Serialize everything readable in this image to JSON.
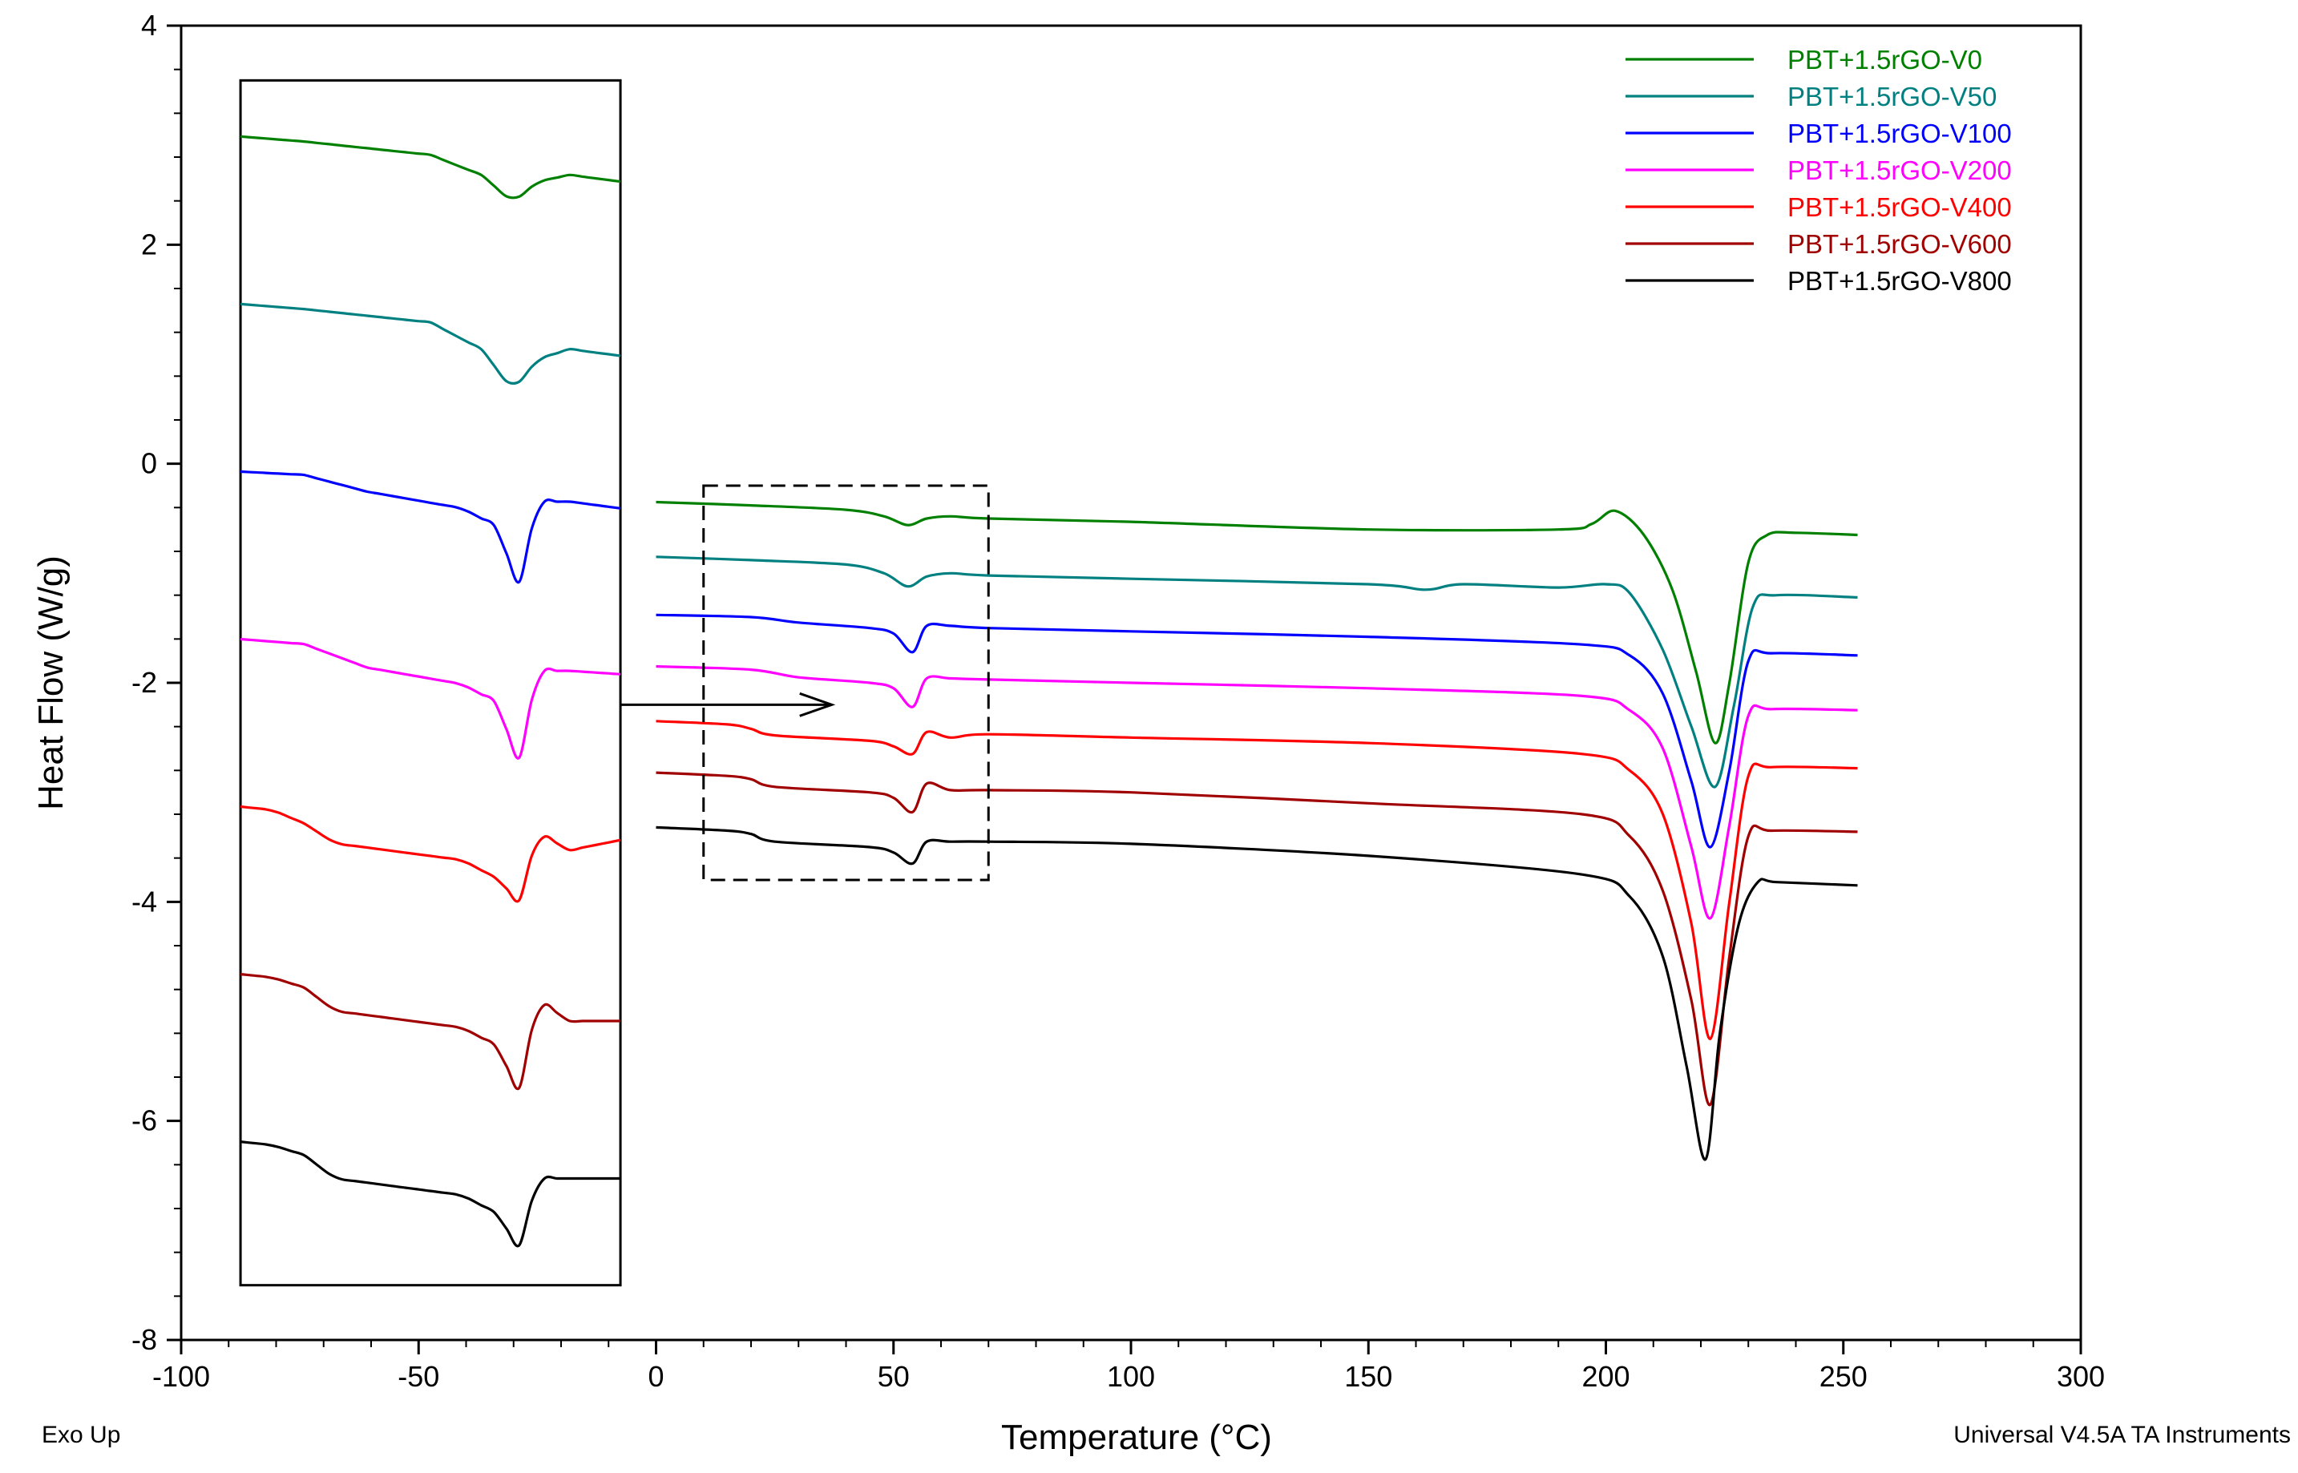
{
  "chart_data": {
    "type": "line",
    "title": "",
    "xlabel": "Temperature (°C)",
    "ylabel": "Heat Flow (W/g)",
    "xlim": [
      -100,
      300
    ],
    "ylim": [
      -8,
      4
    ],
    "xticks": [
      -100,
      -50,
      0,
      50,
      100,
      150,
      200,
      250,
      300
    ],
    "xtick_labels": [
      "-100",
      "-50",
      "0",
      "50",
      "100",
      "150",
      "200",
      "250",
      "300"
    ],
    "yticks": [
      4,
      2,
      0,
      -2,
      -4,
      -6,
      -8
    ],
    "ytick_labels": [
      "4",
      "2",
      "0",
      "-2",
      "-4",
      "-6",
      "-8"
    ],
    "legend_position": "top-right",
    "footer_left": "Exo Up",
    "footer_right": "Universal V4.5A TA Instruments",
    "zoom_box": {
      "x": [
        10,
        70
      ],
      "y": [
        -3.8,
        -0.2
      ]
    },
    "inset": {
      "description_x": [
        -87.5,
        -7.5
      ],
      "y": [
        -7.5,
        3.5
      ],
      "source_x": [
        10,
        70
      ]
    },
    "series": [
      {
        "name": "PBT+1.5rGO-V0",
        "color": "#008000",
        "x": [
          0,
          20,
          40,
          48,
          53,
          57,
          62,
          70,
          100,
          150,
          190,
          197,
          202,
          208,
          214,
          219,
          223,
          226,
          230,
          234,
          240,
          253
        ],
        "y": [
          -0.35,
          -0.38,
          -0.42,
          -0.48,
          -0.56,
          -0.5,
          -0.48,
          -0.5,
          -0.53,
          -0.6,
          -0.6,
          -0.55,
          -0.43,
          -0.65,
          -1.15,
          -1.9,
          -2.55,
          -2.0,
          -0.9,
          -0.65,
          -0.63,
          -0.65
        ]
      },
      {
        "name": "PBT+1.5rGO-V50",
        "color": "#008080",
        "x": [
          0,
          20,
          40,
          48,
          53,
          57,
          62,
          70,
          100,
          150,
          162,
          170,
          190,
          200,
          205,
          212,
          218,
          223,
          227,
          231,
          236,
          253
        ],
        "y": [
          -0.85,
          -0.88,
          -0.92,
          -1.0,
          -1.12,
          -1.03,
          -1.0,
          -1.02,
          -1.05,
          -1.1,
          -1.15,
          -1.1,
          -1.13,
          -1.1,
          -1.18,
          -1.7,
          -2.4,
          -2.95,
          -2.2,
          -1.3,
          -1.2,
          -1.22
        ]
      },
      {
        "name": "PBT+1.5rGO-V100",
        "color": "#0000FF",
        "x": [
          0,
          20,
          30,
          45,
          50,
          54,
          57,
          62,
          70,
          100,
          150,
          195,
          205,
          212,
          218,
          222,
          226,
          230,
          235,
          253
        ],
        "y": [
          -1.38,
          -1.4,
          -1.45,
          -1.5,
          -1.55,
          -1.72,
          -1.48,
          -1.48,
          -1.5,
          -1.53,
          -1.58,
          -1.65,
          -1.75,
          -2.1,
          -2.9,
          -3.5,
          -2.8,
          -1.8,
          -1.73,
          -1.75
        ]
      },
      {
        "name": "PBT+1.5rGO-V200",
        "color": "#FF00FF",
        "x": [
          0,
          20,
          30,
          45,
          50,
          54,
          57,
          62,
          70,
          100,
          150,
          195,
          205,
          212,
          218,
          222,
          226,
          230,
          235,
          253
        ],
        "y": [
          -1.85,
          -1.88,
          -1.95,
          -2.0,
          -2.05,
          -2.22,
          -1.96,
          -1.96,
          -1.97,
          -2.0,
          -2.05,
          -2.12,
          -2.25,
          -2.6,
          -3.5,
          -4.15,
          -3.3,
          -2.3,
          -2.24,
          -2.25
        ]
      },
      {
        "name": "PBT+1.5rGO-V400",
        "color": "#FF0000",
        "x": [
          0,
          15,
          20,
          25,
          45,
          50,
          54,
          57,
          62,
          70,
          100,
          150,
          195,
          205,
          212,
          218,
          222,
          226,
          230,
          235,
          253
        ],
        "y": [
          -2.35,
          -2.38,
          -2.42,
          -2.48,
          -2.53,
          -2.58,
          -2.65,
          -2.45,
          -2.5,
          -2.47,
          -2.5,
          -2.55,
          -2.65,
          -2.8,
          -3.2,
          -4.2,
          -5.25,
          -4.0,
          -2.85,
          -2.77,
          -2.78
        ]
      },
      {
        "name": "PBT+1.5rGO-V600",
        "color": "#A00000",
        "x": [
          0,
          15,
          20,
          25,
          45,
          50,
          54,
          57,
          62,
          70,
          100,
          150,
          195,
          205,
          212,
          218,
          222,
          226,
          230,
          235,
          253
        ],
        "y": [
          -2.82,
          -2.85,
          -2.88,
          -2.95,
          -3.0,
          -3.05,
          -3.18,
          -2.92,
          -2.98,
          -2.98,
          -3.0,
          -3.1,
          -3.2,
          -3.4,
          -3.9,
          -4.9,
          -5.85,
          -4.5,
          -3.4,
          -3.35,
          -3.36
        ]
      },
      {
        "name": "PBT+1.5rGO-V800",
        "color": "#000000",
        "x": [
          0,
          15,
          20,
          25,
          45,
          50,
          54,
          57,
          62,
          70,
          100,
          150,
          195,
          205,
          212,
          217,
          221,
          224,
          228,
          232,
          236,
          253
        ],
        "y": [
          -3.32,
          -3.35,
          -3.38,
          -3.45,
          -3.5,
          -3.55,
          -3.65,
          -3.45,
          -3.45,
          -3.45,
          -3.47,
          -3.58,
          -3.75,
          -3.95,
          -4.5,
          -5.5,
          -6.35,
          -5.2,
          -4.2,
          -3.82,
          -3.82,
          -3.85
        ]
      }
    ]
  }
}
